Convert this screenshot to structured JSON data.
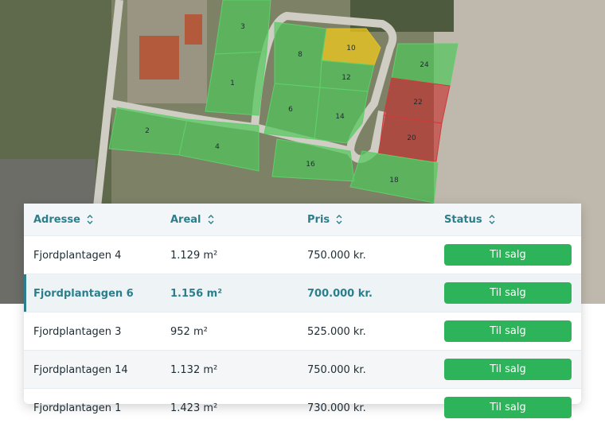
{
  "map": {
    "plots": [
      "3",
      "10",
      "8",
      "12",
      "1",
      "6",
      "14",
      "24",
      "22",
      "20",
      "2",
      "4",
      "16",
      "18"
    ]
  },
  "table": {
    "headers": [
      "Adresse",
      "Areal",
      "Pris",
      "Status"
    ],
    "rows": [
      [
        "Fjordplantagen 4",
        "1.129 m²",
        "750.000 kr.",
        "Til salg"
      ],
      [
        "Fjordplantagen 6",
        "1.156 m²",
        "700.000 kr.",
        "Til salg"
      ],
      [
        "Fjordplantagen 3",
        "952 m²",
        "525.000 kr.",
        "Til salg"
      ],
      [
        "Fjordplantagen 14",
        "1.132 m²",
        "750.000 kr.",
        "Til salg"
      ],
      [
        "Fjordplantagen 1",
        "1.423 m²",
        "730.000 kr.",
        "Til salg"
      ]
    ]
  }
}
